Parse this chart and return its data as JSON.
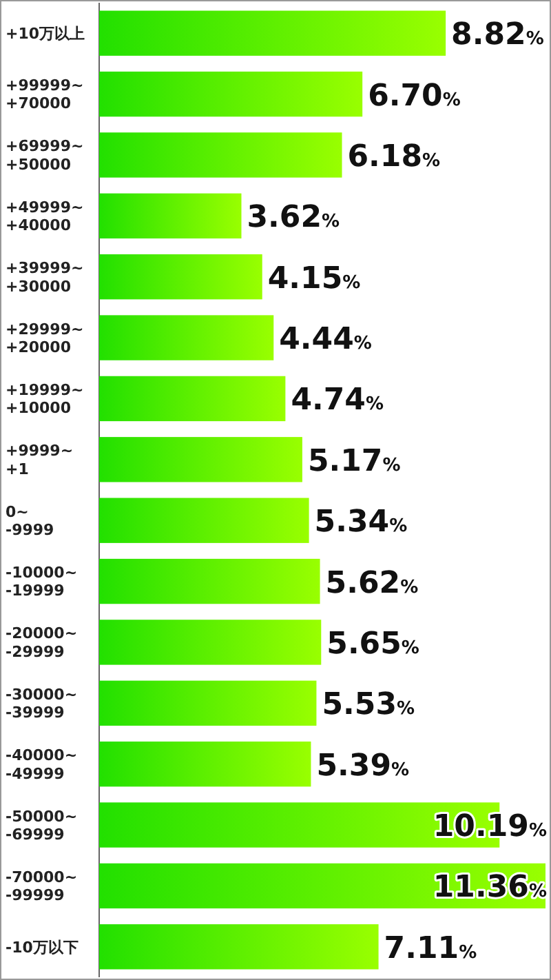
{
  "chart_data": {
    "type": "bar",
    "orientation": "horizontal",
    "categories": [
      "+10万以上",
      "+99999~ +70000",
      "+69999~ +50000",
      "+49999~ +40000",
      "+39999~ +30000",
      "+29999~ +20000",
      "+19999~ +10000",
      "+9999~ +1",
      "0~ -9999",
      "-10000~ -19999",
      "-20000~ -29999",
      "-30000~ -39999",
      "-40000~ -49999",
      "-50000~ -69999",
      "-70000~ -99999",
      "-10万以下"
    ],
    "values": [
      8.82,
      6.7,
      6.18,
      3.62,
      4.15,
      4.44,
      4.74,
      5.17,
      5.34,
      5.62,
      5.65,
      5.53,
      5.39,
      10.19,
      11.36,
      7.11
    ],
    "value_labels": [
      "8.82%",
      "6.70%",
      "6.18%",
      "3.62%",
      "4.15%",
      "4.44%",
      "4.74%",
      "5.17%",
      "5.34%",
      "5.62%",
      "5.65%",
      "5.53%",
      "5.39%",
      "10.19%",
      "11.36%",
      "7.11%"
    ],
    "color": "#22e000"
  }
}
